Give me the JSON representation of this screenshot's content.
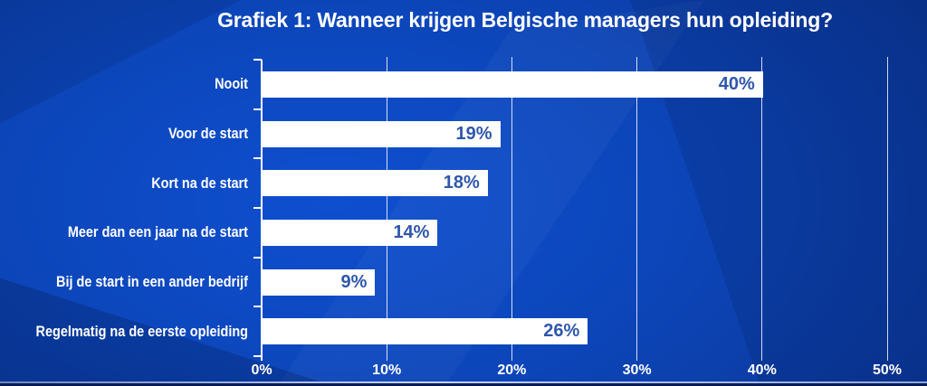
{
  "chart_data": {
    "type": "bar",
    "orientation": "horizontal",
    "title": "Grafiek 1: Wanneer krijgen Belgische managers hun opleiding?",
    "categories": [
      "Nooit",
      "Voor de start",
      "Kort na de start",
      "Meer dan een jaar na de start",
      "Bij de start in een ander bedrijf",
      "Regelmatig na de eerste opleiding"
    ],
    "values": [
      40,
      19,
      18,
      14,
      9,
      26
    ],
    "value_labels": [
      "40%",
      "19%",
      "18%",
      "14%",
      "9%",
      "26%"
    ],
    "x_tick_labels": [
      "0%",
      "10%",
      "20%",
      "30%",
      "40%",
      "50%"
    ],
    "x_tick_values": [
      0,
      10,
      20,
      30,
      40,
      50
    ],
    "xlim": [
      0,
      50
    ],
    "xlabel": "",
    "ylabel": "",
    "grid": true,
    "legend": false,
    "colors": {
      "bar_fill": "#ffffff",
      "value_label": "#2e57ac",
      "category_label": "#ffffff",
      "axis_tick_label": "#ffffff",
      "gridline": "#ffffff",
      "title": "#ffffff",
      "background_center": "#0e4fd0",
      "background_edge": "#08216a",
      "bottom_accent_line": "#c6d2ef"
    }
  }
}
